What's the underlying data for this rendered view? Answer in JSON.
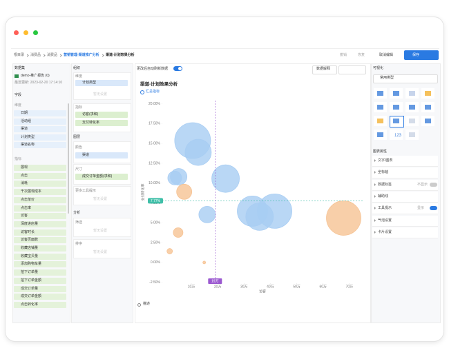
{
  "toolbar": {
    "breadcrumb": [
      "根目录",
      "消费品",
      "消费品",
      "营销管理-渠道推广分析",
      "渠道-计划效果分析"
    ],
    "undo": "撤销",
    "redo": "恢复",
    "cancel": "取消编辑",
    "save": "保存"
  },
  "dataset": {
    "label": "数据集",
    "name": "demo-推广报告 (0)",
    "updated": "最近更新: 2023-02-20 17:14:10",
    "fields_label": "字段",
    "dimensions_label": "维度",
    "dimensions": [
      "日期",
      "活动组",
      "渠道",
      "计划类型",
      "渠道名称"
    ],
    "measures_label": "指标",
    "measures": [
      "展现",
      "点击",
      "消耗",
      "千次展现成本",
      "点击单价",
      "点击率",
      "访客",
      "深度进店量",
      "访客时长",
      "访客页面数",
      "收藏店铺量",
      "收藏宝贝量",
      "添加购物车量",
      "拍下订单量",
      "拍下订单金额",
      "成交订单量",
      "成交订单金额",
      "点击转化率"
    ]
  },
  "config": {
    "title": "组织",
    "dimension_label": "维度",
    "dimensions": [
      "计划类型"
    ],
    "measure_label": "指标",
    "measures": [
      "访客(求和)",
      "支付转化率"
    ],
    "layer_label": "图层",
    "color_label": "颜色",
    "color_field": "渠道",
    "size_label": "尺寸",
    "size_field": "成交订单金额(求和)",
    "tooltip_label": "更多工具提示",
    "analysis_label": "分析",
    "filter_label": "筛选",
    "sort_label": "排序",
    "placeholder": "暂无设置"
  },
  "chart_header": {
    "auto_refresh": "更改后自动刷新数据",
    "explain": "数据解释",
    "summary": "汇总指标",
    "description": "描述"
  },
  "chart_data": {
    "type": "bubble",
    "title": "渠道-计划效果分析",
    "xlabel": "访客",
    "ylabel": "支付转化率",
    "xlim": [
      -10000,
      750000
    ],
    "ylim": [
      -2.7,
      20.4
    ],
    "xticks": [
      {
        "value": 100000,
        "label": "10万"
      },
      {
        "value": 200000,
        "label": "20万"
      },
      {
        "value": 300000,
        "label": "30万"
      },
      {
        "value": 400000,
        "label": "40万"
      },
      {
        "value": 500000,
        "label": "50万"
      },
      {
        "value": 600000,
        "label": "60万"
      },
      {
        "value": 700000,
        "label": "70万"
      }
    ],
    "yticks": [
      {
        "value": -2.5,
        "label": "-2.50%"
      },
      {
        "value": 0,
        "label": "0.00%"
      },
      {
        "value": 2.5,
        "label": "2.50%"
      },
      {
        "value": 5,
        "label": "5.00%"
      },
      {
        "value": 7.5,
        "label": "7.50%"
      },
      {
        "value": 10,
        "label": "10.00%"
      },
      {
        "value": 12.5,
        "label": "12.50%"
      },
      {
        "value": 15,
        "label": "15.00%"
      },
      {
        "value": 17.5,
        "label": "17.50%"
      },
      {
        "value": 20,
        "label": "20.00%"
      }
    ],
    "grid": false,
    "series": [
      {
        "color": "#a8cdf3",
        "x": [
          105000,
          126000,
          37000,
          52000,
          230000,
          160000,
          332000,
          359000,
          416000
        ],
        "values": [
          15.36,
          13.88,
          10.65,
          10.8,
          10.57,
          6.04,
          6.47,
          5.78,
          6.47
        ],
        "sizes": [
          676,
          361,
          100,
          144,
          400,
          144,
          484,
          400,
          625
        ]
      },
      {
        "color": "#f6c394",
        "x": [
          73000,
          678000,
          50000,
          18000,
          149000
        ],
        "values": [
          8.91,
          5.6,
          3.77,
          1.42,
          0
        ],
        "sizes": [
          121,
          625,
          49,
          16,
          4
        ]
      }
    ],
    "ref_lines": {
      "y": {
        "value": 7.77,
        "label": "7.77%",
        "color": "#3fbfa8"
      },
      "x": {
        "value": 190000,
        "label": "19万",
        "color": "#9b59d0"
      }
    }
  },
  "visual": {
    "title": "可视化",
    "type_select": "常用类型",
    "tile_text": "123",
    "attr_title": "图表属性",
    "attrs": [
      {
        "label": "文字/图表"
      },
      {
        "label": "坐标轴"
      },
      {
        "label": "数据标签",
        "state": "不显示"
      },
      {
        "label": "辅助线"
      },
      {
        "label": "工具提示",
        "state": "显示"
      },
      {
        "label": "气泡设置"
      },
      {
        "label": "卡片设置"
      }
    ]
  }
}
